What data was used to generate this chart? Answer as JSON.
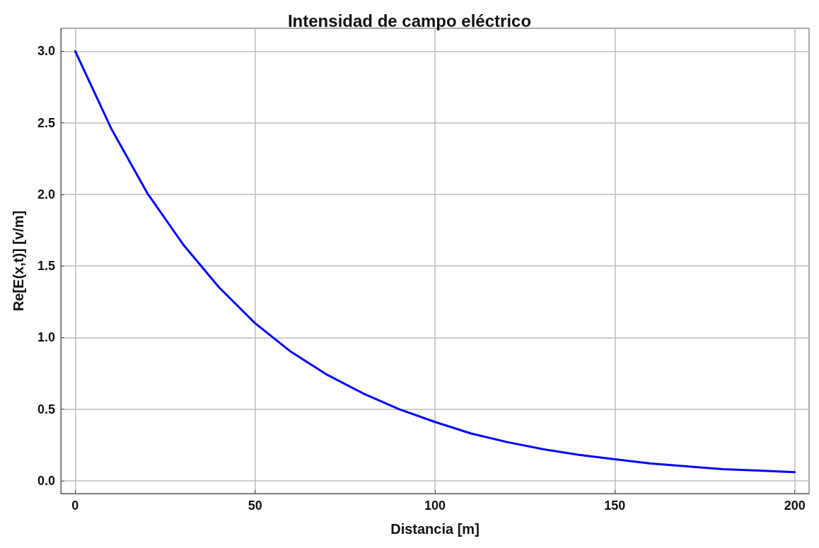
{
  "chart_data": {
    "type": "line",
    "title": "Intensidad de campo eléctrico",
    "xlabel": "Distancia [m]",
    "ylabel": "Re[E(x,t)] [v/m]",
    "x": [
      0,
      10,
      20,
      30,
      40,
      50,
      60,
      70,
      80,
      90,
      100,
      110,
      120,
      130,
      140,
      150,
      160,
      170,
      180,
      190,
      200
    ],
    "series": [
      {
        "color": "#0000ff",
        "values": [
          3.0,
          2.46,
          2.01,
          1.65,
          1.35,
          1.1,
          0.9,
          0.74,
          0.61,
          0.5,
          0.41,
          0.33,
          0.27,
          0.22,
          0.18,
          0.15,
          0.12,
          0.1,
          0.08,
          0.07,
          0.06
        ]
      }
    ],
    "xlim": [
      -4,
      204
    ],
    "ylim": [
      -0.09,
      3.16
    ],
    "xticks": [
      0,
      50,
      100,
      150,
      200
    ],
    "yticks": [
      {
        "value": 0,
        "label": "0.0"
      },
      0.5,
      {
        "value": 1,
        "label": "1.0"
      },
      1.5,
      {
        "value": 2,
        "label": "2.0"
      },
      2.5,
      {
        "value": 3,
        "label": "3.0"
      }
    ],
    "grid": true,
    "marker": "none",
    "line_style": "solid"
  }
}
